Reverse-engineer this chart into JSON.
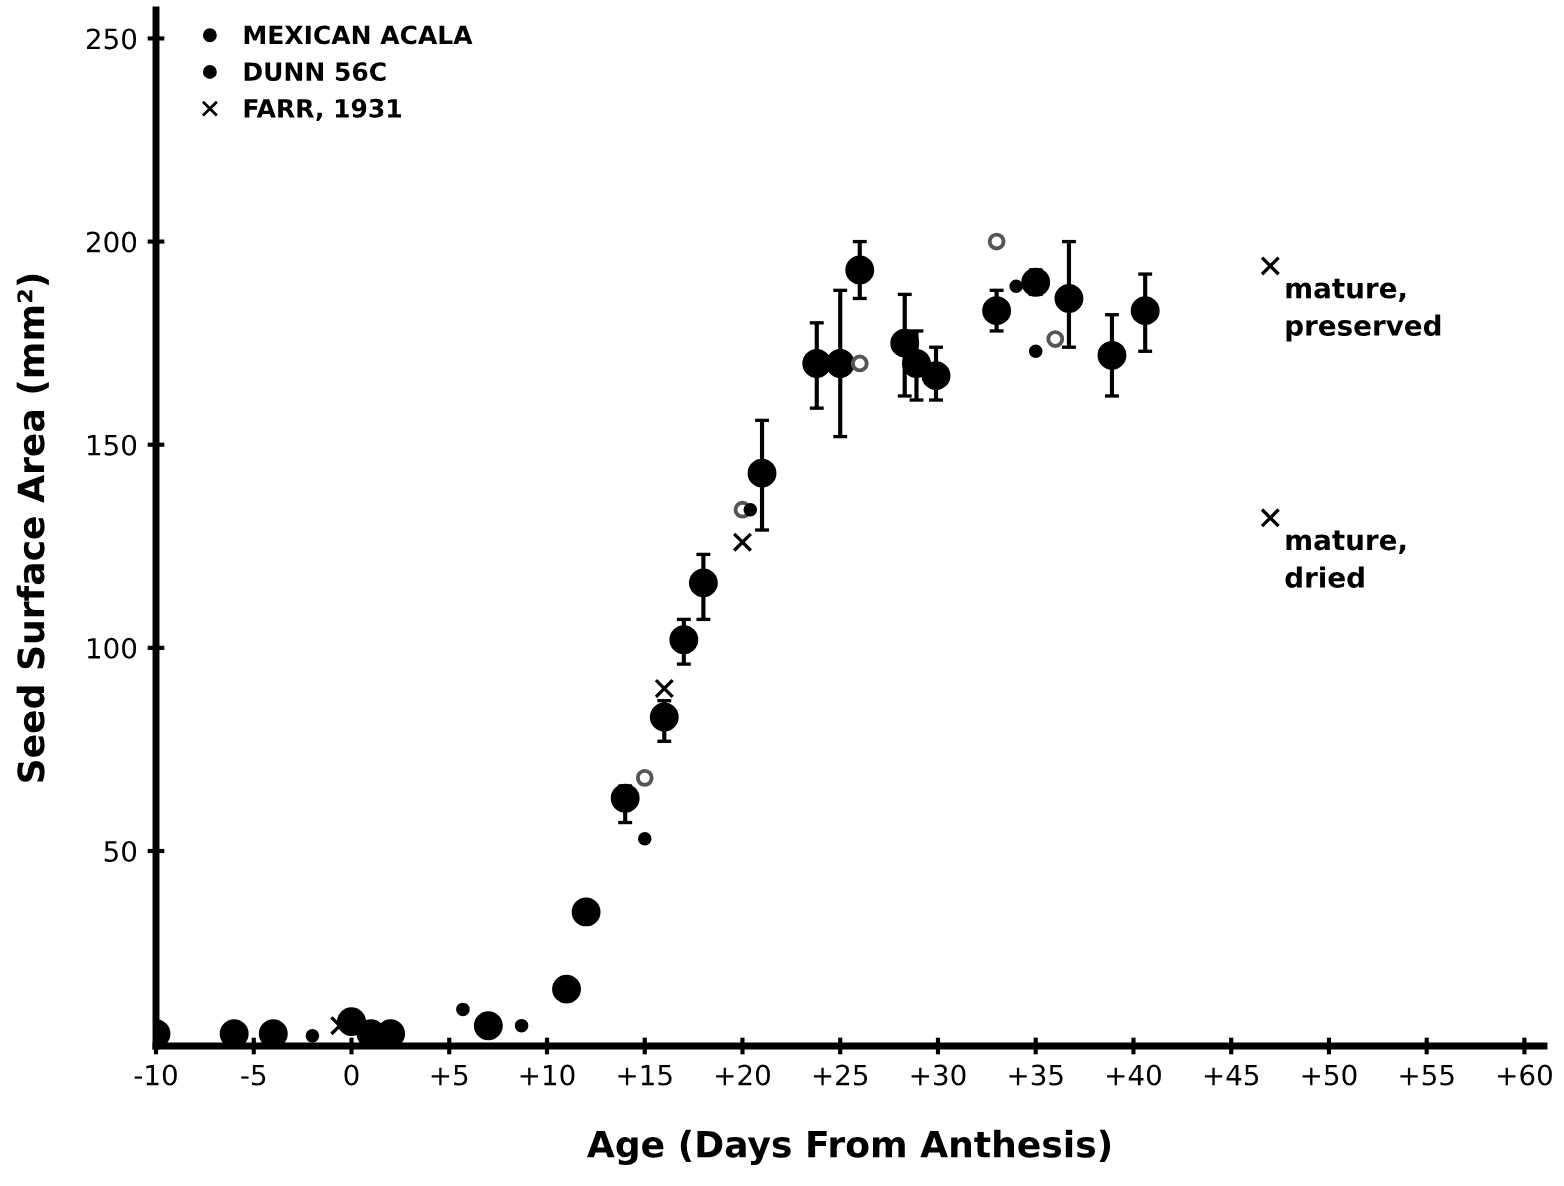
{
  "chart_data": {
    "type": "scatter",
    "xlabel": "Age (Days From Anthesis)",
    "ylabel": "Seed Surface Area (mm²)",
    "xlim": [
      -10,
      61
    ],
    "ylim": [
      2,
      257
    ],
    "xticks": [
      -10,
      -5,
      0,
      {
        "value": 5,
        "label": "+5"
      },
      {
        "value": 10,
        "label": "+10"
      },
      {
        "value": 15,
        "label": "+15"
      },
      {
        "value": 20,
        "label": "+20"
      },
      {
        "value": 25,
        "label": "+25"
      },
      {
        "value": 30,
        "label": "+30"
      },
      {
        "value": 35,
        "label": "+35"
      },
      {
        "value": 40,
        "label": "+40"
      },
      {
        "value": 45,
        "label": "+45"
      },
      {
        "value": 50,
        "label": "+50"
      },
      {
        "value": 55,
        "label": "+55"
      },
      {
        "value": 60,
        "label": "+60"
      }
    ],
    "yticks": [
      50,
      100,
      150,
      200,
      250
    ],
    "grid": false,
    "legend": "top left",
    "series": [
      {
        "name": "MEXICAN ACALA",
        "color": "#000000",
        "marker": "circle",
        "x": [
          -10,
          -6,
          -4,
          0,
          1,
          2,
          7,
          11,
          12,
          14,
          16,
          17,
          18,
          21,
          23.8,
          25,
          26,
          28.3,
          28.9,
          29.9,
          33,
          35,
          36.7,
          38.9,
          40.6
        ],
        "values": [
          5,
          5,
          5,
          8,
          5,
          5,
          7,
          16,
          35,
          63,
          83,
          102,
          116,
          143,
          170,
          170,
          193,
          175,
          170,
          167,
          183,
          190,
          186,
          172,
          183
        ],
        "errors": [
          null,
          null,
          null,
          null,
          null,
          null,
          null,
          null,
          null,
          [
            57,
            66
          ],
          [
            77,
            87
          ],
          [
            96,
            107
          ],
          [
            107,
            123
          ],
          [
            129,
            156
          ],
          [
            159,
            180
          ],
          [
            152,
            188
          ],
          [
            186,
            200
          ],
          [
            162,
            187
          ],
          [
            161,
            178
          ],
          [
            161,
            174
          ],
          [
            178,
            188
          ],
          [
            187,
            193
          ],
          [
            174,
            200
          ],
          [
            162,
            182
          ],
          [
            173,
            192
          ]
        ]
      },
      {
        "name": null,
        "color": "#555555",
        "marker": "circle",
        "x": [
          15,
          20,
          26,
          33,
          36
        ],
        "values": [
          68,
          134,
          170,
          200,
          176
        ]
      },
      {
        "name": "DUNN 56C",
        "color": "#000000",
        "marker": "circle",
        "x": [
          -2,
          5.7,
          8.7,
          15,
          20.4,
          34,
          35
        ],
        "values": [
          4.5,
          11,
          7,
          53,
          134,
          189,
          173
        ]
      },
      {
        "name": "FARR, 1931",
        "color": "#000000",
        "marker": "cross",
        "x": [
          -0.6,
          16,
          20,
          47,
          47
        ],
        "values": [
          7,
          90,
          126,
          194,
          132
        ]
      }
    ],
    "annotations": [
      {
        "text": "mature,\npreserved",
        "x": 47,
        "y": 194
      },
      {
        "text": "mature,\ndried",
        "x": 47,
        "y": 132
      }
    ]
  }
}
